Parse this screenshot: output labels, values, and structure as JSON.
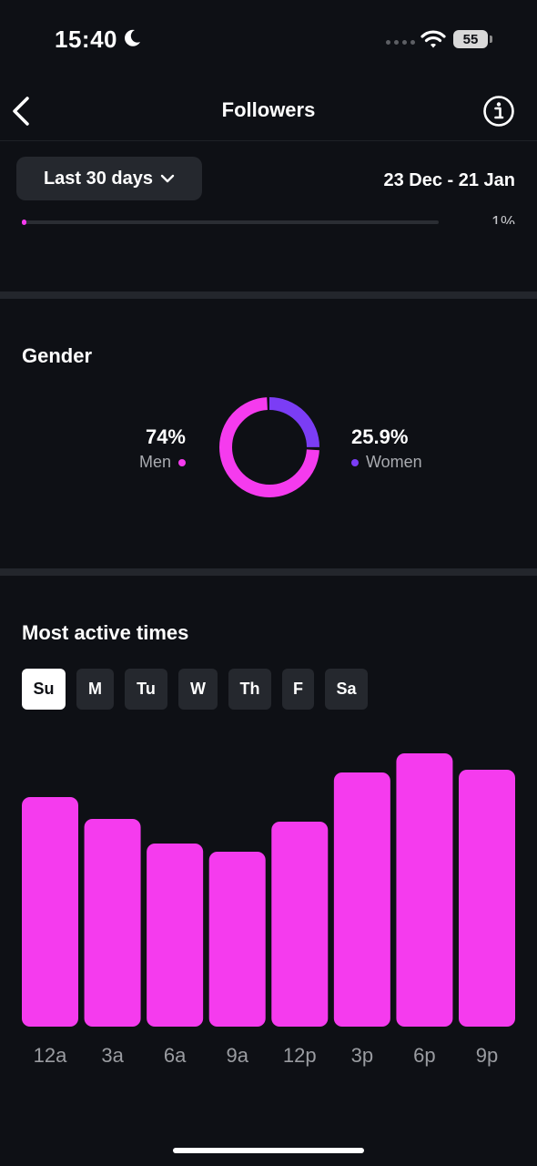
{
  "status_bar": {
    "time": "15:40",
    "battery": "55"
  },
  "header": {
    "title": "Followers"
  },
  "filter": {
    "range_label": "Last 30 days",
    "date_range": "23 Dec - 21 Jan"
  },
  "age": {
    "last_percent_text": "1%"
  },
  "gender": {
    "title": "Gender",
    "men": {
      "percent_text": "74%",
      "label": "Men",
      "value": 74.0,
      "color": "#f53bee"
    },
    "women": {
      "percent_text": "25.9%",
      "label": "Women",
      "value": 25.9,
      "color": "#7b3df5"
    }
  },
  "active_times": {
    "title": "Most active times",
    "days": [
      "Su",
      "M",
      "Tu",
      "W",
      "Th",
      "F",
      "Sa"
    ],
    "selected_day": "Su"
  },
  "chart_data": {
    "type": "bar",
    "categories": [
      "12a",
      "3a",
      "6a",
      "9a",
      "12p",
      "3p",
      "6p",
      "9p"
    ],
    "values": [
      84,
      76,
      67,
      64,
      75,
      93,
      100,
      94
    ],
    "ylim": [
      0,
      100
    ],
    "color": "#f53bee",
    "grid": false
  }
}
